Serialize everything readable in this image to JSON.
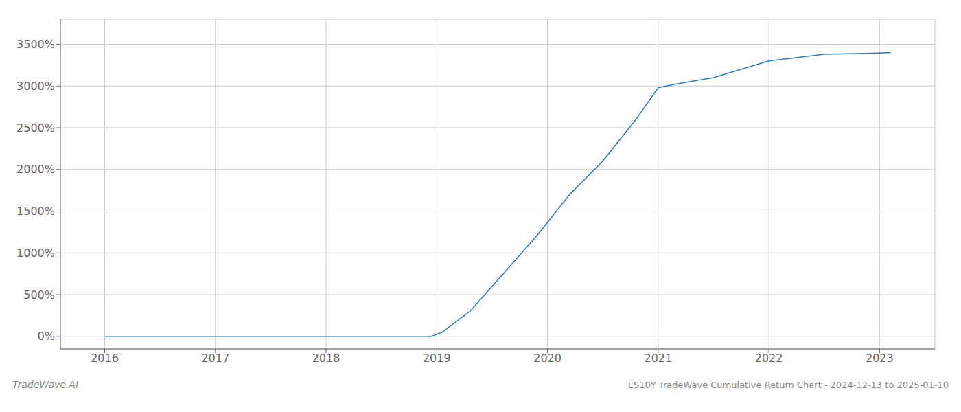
{
  "chart_data": {
    "type": "line",
    "title": "ES10Y TradeWave Cumulative Return Chart - 2024-12-13 to 2025-01-10",
    "annotations": [
      "TradeWave.AI"
    ],
    "x": [
      2016.0,
      2016.5,
      2017.0,
      2017.5,
      2018.0,
      2018.5,
      2018.95,
      2019.05,
      2019.3,
      2019.6,
      2019.9,
      2020.2,
      2020.5,
      2020.8,
      2021.0,
      2021.15,
      2021.5,
      2022.0,
      2022.5,
      2023.0,
      2023.1
    ],
    "values": [
      0,
      0,
      0,
      0,
      0,
      0,
      0,
      50,
      300,
      750,
      1200,
      1700,
      2100,
      2600,
      2980,
      3020,
      3100,
      3300,
      3380,
      3395,
      3400
    ],
    "color": "#2878c8",
    "xlim": [
      2015.6,
      2023.5
    ],
    "ylim": [
      -150,
      3800
    ],
    "xticks": [
      2016,
      2017,
      2018,
      2019,
      2020,
      2021,
      2022,
      2023
    ],
    "yticks": [
      {
        "value": 0,
        "label": "0%"
      },
      {
        "value": 500,
        "label": "500%"
      },
      {
        "value": 1000,
        "label": "1000%"
      },
      {
        "value": 1500,
        "label": "1500%"
      },
      {
        "value": 2000,
        "label": "2000%"
      },
      {
        "value": 2500,
        "label": "2500%"
      },
      {
        "value": 3000,
        "label": "3000%"
      },
      {
        "value": 3500,
        "label": "3500%"
      }
    ],
    "grid": true
  }
}
